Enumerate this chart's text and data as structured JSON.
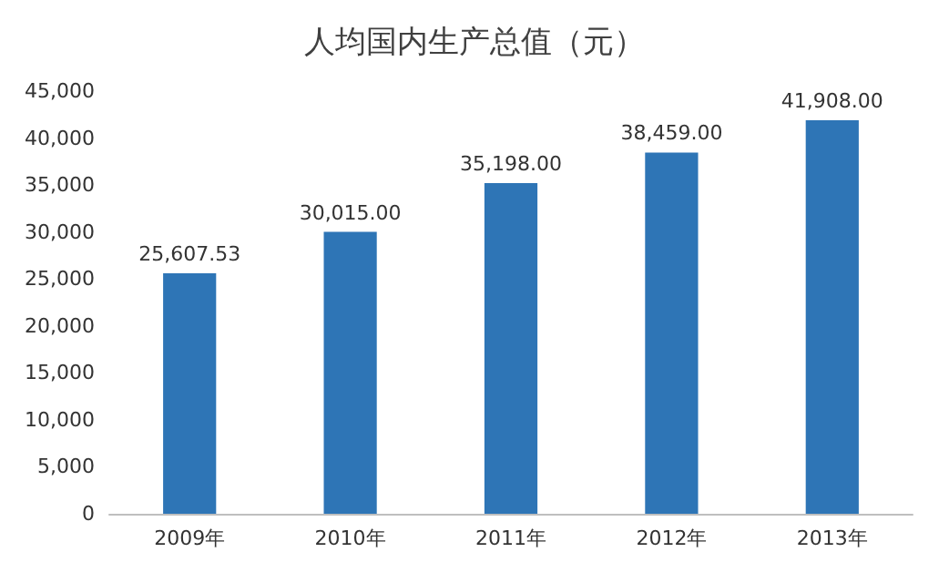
{
  "chart_data": {
    "type": "bar",
    "title": "人均国内生产总值（元）",
    "categories": [
      "2009年",
      "2010年",
      "2011年",
      "2012年",
      "2013年"
    ],
    "values": [
      25607.53,
      30015,
      35198,
      38459,
      41908
    ],
    "value_labels": [
      "25,607.53",
      "30,015.00",
      "35,198.00",
      "38,459.00",
      "41,908.00"
    ],
    "color": "#2e75b6",
    "ylim": [
      0,
      45000
    ],
    "yticks": [
      {
        "value": 0,
        "label": "0"
      },
      {
        "value": 5000,
        "label": "5,000"
      },
      {
        "value": 10000,
        "label": "10,000"
      },
      {
        "value": 15000,
        "label": "15,000"
      },
      {
        "value": 20000,
        "label": "20,000"
      },
      {
        "value": 25000,
        "label": "25,000"
      },
      {
        "value": 30000,
        "label": "30,000"
      },
      {
        "value": 35000,
        "label": "35,000"
      },
      {
        "value": 40000,
        "label": "40,000"
      },
      {
        "value": 45000,
        "label": "45,000"
      }
    ],
    "grid": false
  }
}
